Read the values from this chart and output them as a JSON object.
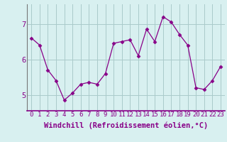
{
  "x": [
    0,
    1,
    2,
    3,
    4,
    5,
    6,
    7,
    8,
    9,
    10,
    11,
    12,
    13,
    14,
    15,
    16,
    17,
    18,
    19,
    20,
    21,
    22,
    23
  ],
  "y": [
    6.6,
    6.4,
    5.7,
    5.4,
    4.85,
    5.05,
    5.3,
    5.35,
    5.3,
    5.6,
    6.45,
    6.5,
    6.55,
    6.1,
    6.85,
    6.5,
    7.2,
    7.05,
    6.7,
    6.4,
    5.2,
    5.15,
    5.4,
    5.8
  ],
  "line_color": "#880088",
  "marker": "D",
  "marker_size": 2.5,
  "bg_color": "#d8f0f0",
  "grid_color": "#aacaca",
  "xlabel": "Windchill (Refroidissement éolien,°C)",
  "xlabel_color": "#880088",
  "tick_color": "#880088",
  "xlabel_fontsize": 7.5,
  "tick_fontsize": 6.5,
  "yticks": [
    5,
    6,
    7
  ],
  "xtick_labels": [
    "0",
    "1",
    "2",
    "3",
    "4",
    "5",
    "6",
    "7",
    "8",
    "9",
    "10",
    "11",
    "12",
    "13",
    "14",
    "15",
    "16",
    "17",
    "18",
    "19",
    "20",
    "21",
    "22",
    "23"
  ],
  "ylim": [
    4.55,
    7.55
  ],
  "xlim": [
    -0.5,
    23.5
  ]
}
